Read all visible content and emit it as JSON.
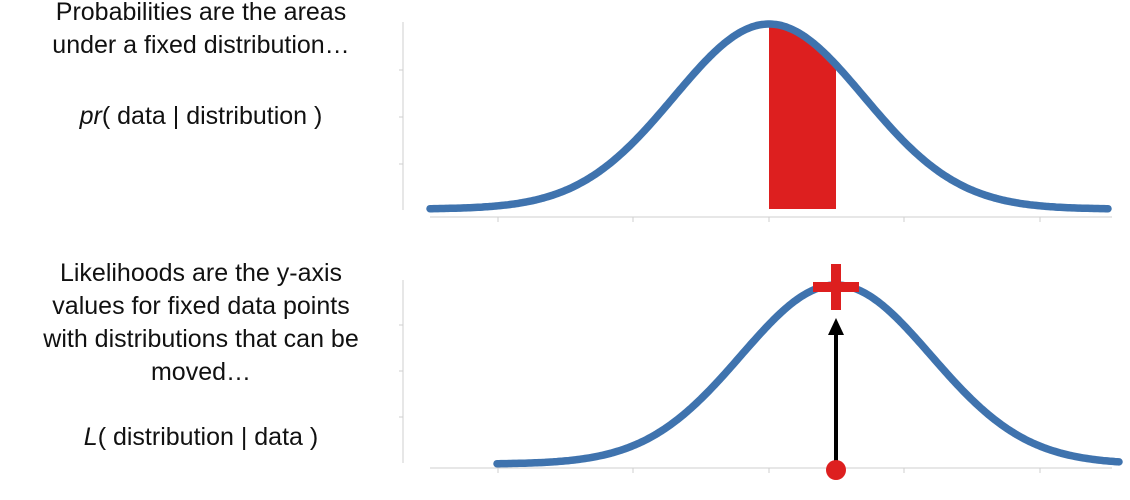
{
  "probability": {
    "caption_line1": "Probabilities are the areas",
    "caption_line2": "under a fixed distribution…",
    "formula_func": "pr",
    "formula_args": "( data | distribution )"
  },
  "likelihood": {
    "caption_line1": "Likelihoods are the y-axis",
    "caption_line2": "values for fixed data points",
    "caption_line3": "with distributions that can be",
    "caption_line4": "moved…",
    "formula_func": "L",
    "formula_args": "( distribution | data )"
  },
  "colors": {
    "curve": "#3f73ae",
    "highlight": "#dd1f1f",
    "arrow": "#000000",
    "axis": "#cfcfcf"
  }
}
